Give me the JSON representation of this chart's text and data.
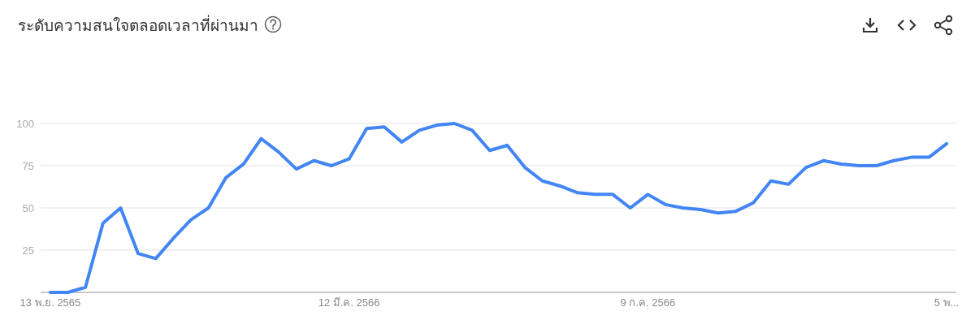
{
  "chart_data": {
    "type": "line",
    "title": "ระดับความสนใจตลอดเวลาที่ผ่านมา",
    "categories": [
      "13 พ.ย. 2565",
      null,
      null,
      null,
      null,
      null,
      null,
      null,
      null,
      null,
      null,
      null,
      null,
      null,
      null,
      null,
      null,
      "12 มี.ค. 2566",
      null,
      null,
      null,
      null,
      null,
      null,
      null,
      null,
      null,
      null,
      null,
      null,
      null,
      null,
      null,
      null,
      "9 ก.ค. 2566",
      null,
      null,
      null,
      null,
      null,
      null,
      null,
      null,
      null,
      null,
      null,
      null,
      null,
      null,
      null,
      null,
      "5 พ..."
    ],
    "series": [
      {
        "color": "#4285f4",
        "values": [
          0,
          0,
          3,
          41,
          50,
          23,
          20,
          32,
          43,
          50,
          68,
          76,
          91,
          83,
          73,
          78,
          75,
          79,
          97,
          98,
          89,
          96,
          99,
          100,
          96,
          84,
          87,
          74,
          66,
          63,
          59,
          58,
          58,
          50,
          58,
          52,
          50,
          49,
          47,
          48,
          53,
          66,
          64,
          74,
          78,
          76,
          75,
          75,
          78,
          80,
          80,
          88
        ]
      }
    ],
    "ylim": [
      0,
      100
    ],
    "yticks": [
      25,
      50,
      75,
      100
    ],
    "grid": "y"
  }
}
